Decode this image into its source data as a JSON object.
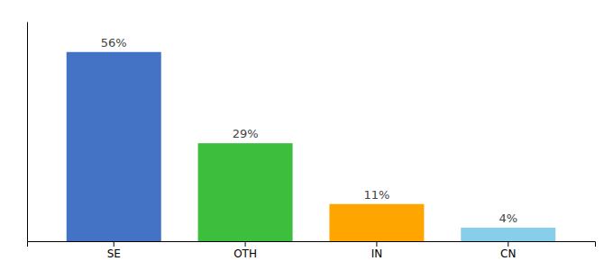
{
  "chart_data": {
    "type": "bar",
    "categories": [
      "SE",
      "OTH",
      "IN",
      "CN"
    ],
    "values": [
      56,
      29,
      11,
      4
    ],
    "value_labels": [
      "56%",
      "29%",
      "11%",
      "4%"
    ],
    "data_labels": true,
    "colors": [
      "#4472C4",
      "#3DBF3D",
      "#FFA500",
      "#87CEEB"
    ],
    "ylim": [
      0,
      65
    ],
    "tick_labels": "x",
    "grid": false
  }
}
